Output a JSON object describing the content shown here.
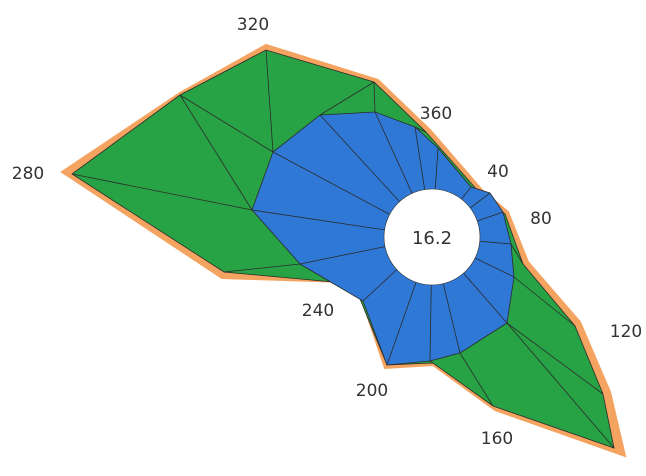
{
  "chart_data": {
    "type": "radar",
    "center_label": "16.2",
    "direction_labels": [
      "40",
      "80",
      "120",
      "160",
      "200",
      "240",
      "280",
      "320",
      "360"
    ],
    "sectors": 20,
    "colors": {
      "outer_band": "#f4a460",
      "middle_band": "#27a345",
      "inner_band": "#2f78d6",
      "edge_lines": "#2b2b2b",
      "center_hole": "#ffffff"
    }
  }
}
